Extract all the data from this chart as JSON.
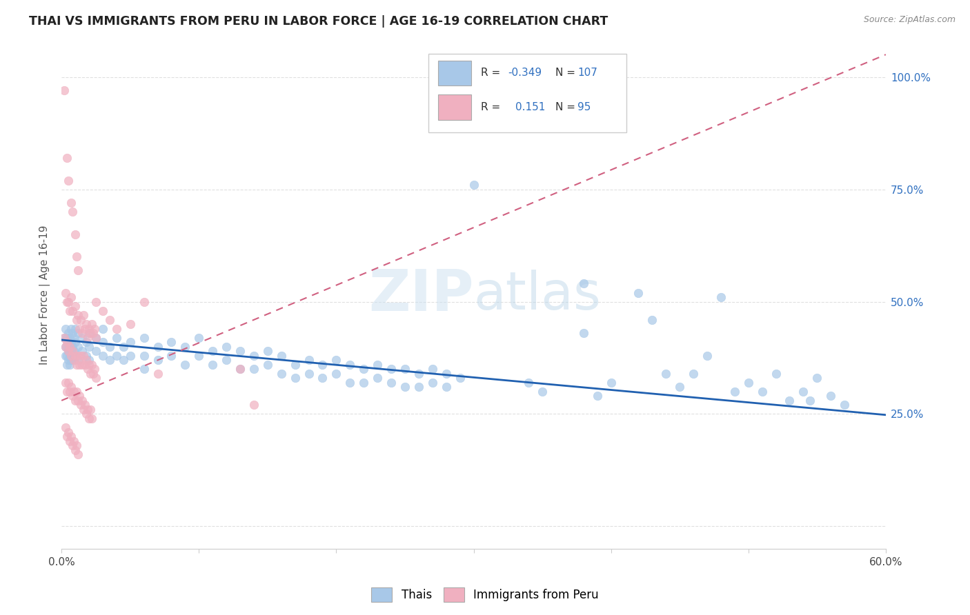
{
  "title": "THAI VS IMMIGRANTS FROM PERU IN LABOR FORCE | AGE 16-19 CORRELATION CHART",
  "source": "Source: ZipAtlas.com",
  "ylabel": "In Labor Force | Age 16-19",
  "yticks": [
    "",
    "25.0%",
    "50.0%",
    "75.0%",
    "100.0%"
  ],
  "ytick_vals": [
    0.0,
    0.25,
    0.5,
    0.75,
    1.0
  ],
  "xlim": [
    0.0,
    0.6
  ],
  "ylim": [
    -0.05,
    1.08
  ],
  "blue_color": "#a8c8e8",
  "pink_color": "#f0b0c0",
  "blue_line_color": "#2060b0",
  "pink_line_color": "#d06080",
  "blue_line": [
    [
      0.0,
      0.415
    ],
    [
      0.6,
      0.248
    ]
  ],
  "pink_line": [
    [
      0.0,
      0.28
    ],
    [
      0.6,
      1.05
    ]
  ],
  "blue_scatter": [
    [
      0.002,
      0.42
    ],
    [
      0.003,
      0.44
    ],
    [
      0.003,
      0.4
    ],
    [
      0.003,
      0.38
    ],
    [
      0.004,
      0.42
    ],
    [
      0.004,
      0.4
    ],
    [
      0.004,
      0.38
    ],
    [
      0.004,
      0.36
    ],
    [
      0.005,
      0.43
    ],
    [
      0.005,
      0.41
    ],
    [
      0.005,
      0.39
    ],
    [
      0.005,
      0.37
    ],
    [
      0.006,
      0.42
    ],
    [
      0.006,
      0.4
    ],
    [
      0.006,
      0.38
    ],
    [
      0.006,
      0.36
    ],
    [
      0.007,
      0.44
    ],
    [
      0.007,
      0.41
    ],
    [
      0.007,
      0.39
    ],
    [
      0.007,
      0.37
    ],
    [
      0.008,
      0.43
    ],
    [
      0.008,
      0.4
    ],
    [
      0.008,
      0.38
    ],
    [
      0.009,
      0.42
    ],
    [
      0.009,
      0.39
    ],
    [
      0.009,
      0.37
    ],
    [
      0.01,
      0.44
    ],
    [
      0.01,
      0.41
    ],
    [
      0.01,
      0.38
    ],
    [
      0.012,
      0.43
    ],
    [
      0.012,
      0.4
    ],
    [
      0.012,
      0.37
    ],
    [
      0.015,
      0.42
    ],
    [
      0.015,
      0.39
    ],
    [
      0.018,
      0.41
    ],
    [
      0.018,
      0.38
    ],
    [
      0.02,
      0.43
    ],
    [
      0.02,
      0.4
    ],
    [
      0.02,
      0.37
    ],
    [
      0.025,
      0.42
    ],
    [
      0.025,
      0.39
    ],
    [
      0.03,
      0.44
    ],
    [
      0.03,
      0.41
    ],
    [
      0.03,
      0.38
    ],
    [
      0.035,
      0.4
    ],
    [
      0.035,
      0.37
    ],
    [
      0.04,
      0.42
    ],
    [
      0.04,
      0.38
    ],
    [
      0.045,
      0.4
    ],
    [
      0.045,
      0.37
    ],
    [
      0.05,
      0.41
    ],
    [
      0.05,
      0.38
    ],
    [
      0.06,
      0.42
    ],
    [
      0.06,
      0.38
    ],
    [
      0.06,
      0.35
    ],
    [
      0.07,
      0.4
    ],
    [
      0.07,
      0.37
    ],
    [
      0.08,
      0.41
    ],
    [
      0.08,
      0.38
    ],
    [
      0.09,
      0.4
    ],
    [
      0.09,
      0.36
    ],
    [
      0.1,
      0.42
    ],
    [
      0.1,
      0.38
    ],
    [
      0.11,
      0.39
    ],
    [
      0.11,
      0.36
    ],
    [
      0.12,
      0.4
    ],
    [
      0.12,
      0.37
    ],
    [
      0.13,
      0.39
    ],
    [
      0.13,
      0.35
    ],
    [
      0.14,
      0.38
    ],
    [
      0.14,
      0.35
    ],
    [
      0.15,
      0.39
    ],
    [
      0.15,
      0.36
    ],
    [
      0.16,
      0.38
    ],
    [
      0.16,
      0.34
    ],
    [
      0.17,
      0.36
    ],
    [
      0.17,
      0.33
    ],
    [
      0.18,
      0.37
    ],
    [
      0.18,
      0.34
    ],
    [
      0.19,
      0.36
    ],
    [
      0.19,
      0.33
    ],
    [
      0.2,
      0.37
    ],
    [
      0.2,
      0.34
    ],
    [
      0.21,
      0.36
    ],
    [
      0.21,
      0.32
    ],
    [
      0.22,
      0.35
    ],
    [
      0.22,
      0.32
    ],
    [
      0.23,
      0.36
    ],
    [
      0.23,
      0.33
    ],
    [
      0.24,
      0.35
    ],
    [
      0.24,
      0.32
    ],
    [
      0.25,
      0.35
    ],
    [
      0.25,
      0.31
    ],
    [
      0.26,
      0.34
    ],
    [
      0.26,
      0.31
    ],
    [
      0.27,
      0.35
    ],
    [
      0.27,
      0.32
    ],
    [
      0.28,
      0.34
    ],
    [
      0.28,
      0.31
    ],
    [
      0.29,
      0.33
    ],
    [
      0.3,
      0.76
    ],
    [
      0.34,
      0.32
    ],
    [
      0.35,
      0.3
    ],
    [
      0.38,
      0.54
    ],
    [
      0.38,
      0.43
    ],
    [
      0.39,
      0.29
    ],
    [
      0.4,
      0.32
    ],
    [
      0.42,
      0.52
    ],
    [
      0.43,
      0.46
    ],
    [
      0.44,
      0.34
    ],
    [
      0.45,
      0.31
    ],
    [
      0.46,
      0.34
    ],
    [
      0.47,
      0.38
    ],
    [
      0.48,
      0.51
    ],
    [
      0.49,
      0.3
    ],
    [
      0.5,
      0.32
    ],
    [
      0.51,
      0.3
    ],
    [
      0.52,
      0.34
    ],
    [
      0.53,
      0.28
    ],
    [
      0.54,
      0.3
    ],
    [
      0.545,
      0.28
    ],
    [
      0.55,
      0.33
    ],
    [
      0.56,
      0.29
    ],
    [
      0.57,
      0.27
    ]
  ],
  "pink_scatter": [
    [
      0.002,
      0.97
    ],
    [
      0.004,
      0.82
    ],
    [
      0.005,
      0.77
    ],
    [
      0.007,
      0.72
    ],
    [
      0.008,
      0.7
    ],
    [
      0.01,
      0.65
    ],
    [
      0.011,
      0.6
    ],
    [
      0.012,
      0.57
    ],
    [
      0.003,
      0.52
    ],
    [
      0.004,
      0.5
    ],
    [
      0.005,
      0.5
    ],
    [
      0.006,
      0.48
    ],
    [
      0.007,
      0.51
    ],
    [
      0.008,
      0.48
    ],
    [
      0.01,
      0.49
    ],
    [
      0.011,
      0.46
    ],
    [
      0.012,
      0.47
    ],
    [
      0.013,
      0.44
    ],
    [
      0.014,
      0.46
    ],
    [
      0.015,
      0.43
    ],
    [
      0.016,
      0.47
    ],
    [
      0.017,
      0.44
    ],
    [
      0.018,
      0.45
    ],
    [
      0.019,
      0.42
    ],
    [
      0.02,
      0.44
    ],
    [
      0.021,
      0.43
    ],
    [
      0.022,
      0.45
    ],
    [
      0.023,
      0.43
    ],
    [
      0.024,
      0.44
    ],
    [
      0.025,
      0.42
    ],
    [
      0.002,
      0.42
    ],
    [
      0.003,
      0.4
    ],
    [
      0.004,
      0.41
    ],
    [
      0.005,
      0.39
    ],
    [
      0.006,
      0.4
    ],
    [
      0.007,
      0.38
    ],
    [
      0.008,
      0.39
    ],
    [
      0.009,
      0.37
    ],
    [
      0.01,
      0.38
    ],
    [
      0.011,
      0.36
    ],
    [
      0.012,
      0.38
    ],
    [
      0.013,
      0.36
    ],
    [
      0.014,
      0.38
    ],
    [
      0.015,
      0.36
    ],
    [
      0.016,
      0.38
    ],
    [
      0.017,
      0.36
    ],
    [
      0.018,
      0.37
    ],
    [
      0.019,
      0.35
    ],
    [
      0.02,
      0.36
    ],
    [
      0.021,
      0.34
    ],
    [
      0.022,
      0.36
    ],
    [
      0.023,
      0.34
    ],
    [
      0.024,
      0.35
    ],
    [
      0.025,
      0.33
    ],
    [
      0.003,
      0.32
    ],
    [
      0.004,
      0.3
    ],
    [
      0.005,
      0.32
    ],
    [
      0.006,
      0.3
    ],
    [
      0.007,
      0.31
    ],
    [
      0.008,
      0.29
    ],
    [
      0.009,
      0.3
    ],
    [
      0.01,
      0.28
    ],
    [
      0.011,
      0.3
    ],
    [
      0.012,
      0.28
    ],
    [
      0.013,
      0.29
    ],
    [
      0.014,
      0.27
    ],
    [
      0.015,
      0.28
    ],
    [
      0.016,
      0.26
    ],
    [
      0.017,
      0.27
    ],
    [
      0.018,
      0.25
    ],
    [
      0.019,
      0.26
    ],
    [
      0.02,
      0.24
    ],
    [
      0.021,
      0.26
    ],
    [
      0.022,
      0.24
    ],
    [
      0.003,
      0.22
    ],
    [
      0.004,
      0.2
    ],
    [
      0.005,
      0.21
    ],
    [
      0.006,
      0.19
    ],
    [
      0.007,
      0.2
    ],
    [
      0.008,
      0.18
    ],
    [
      0.009,
      0.19
    ],
    [
      0.01,
      0.17
    ],
    [
      0.011,
      0.18
    ],
    [
      0.012,
      0.16
    ],
    [
      0.025,
      0.5
    ],
    [
      0.03,
      0.48
    ],
    [
      0.035,
      0.46
    ],
    [
      0.04,
      0.44
    ],
    [
      0.05,
      0.45
    ],
    [
      0.06,
      0.5
    ],
    [
      0.07,
      0.34
    ],
    [
      0.13,
      0.35
    ],
    [
      0.14,
      0.27
    ]
  ],
  "watermark_line1": "ZIP",
  "watermark_line2": "atlas",
  "grid_color": "#e0e0e0",
  "background_color": "#ffffff"
}
